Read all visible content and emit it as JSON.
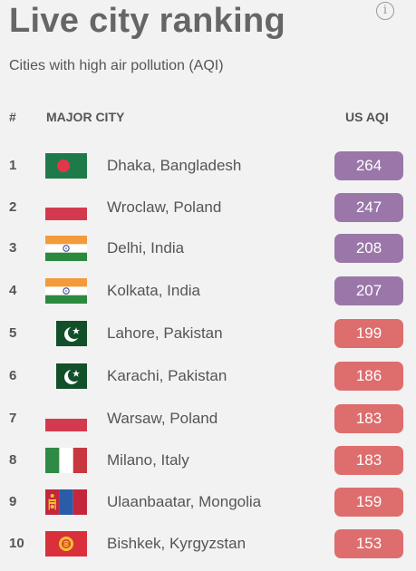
{
  "title": "Live city ranking",
  "subtitle": "Cities with high air pollution (AQI)",
  "table": {
    "headers": {
      "rank": "#",
      "city": "MAJOR CITY",
      "aqi": "US AQI"
    },
    "rows": [
      {
        "rank": "1",
        "city": "Dhaka, Bangladesh",
        "aqi": "264",
        "level": "purple",
        "flag": "bangladesh"
      },
      {
        "rank": "2",
        "city": "Wroclaw, Poland",
        "aqi": "247",
        "level": "purple",
        "flag": "poland"
      },
      {
        "rank": "3",
        "city": "Delhi, India",
        "aqi": "208",
        "level": "purple",
        "flag": "india"
      },
      {
        "rank": "4",
        "city": "Kolkata, India",
        "aqi": "207",
        "level": "purple",
        "flag": "india"
      },
      {
        "rank": "5",
        "city": "Lahore, Pakistan",
        "aqi": "199",
        "level": "red",
        "flag": "pakistan"
      },
      {
        "rank": "6",
        "city": "Karachi, Pakistan",
        "aqi": "186",
        "level": "red",
        "flag": "pakistan"
      },
      {
        "rank": "7",
        "city": "Warsaw, Poland",
        "aqi": "183",
        "level": "red",
        "flag": "poland"
      },
      {
        "rank": "8",
        "city": "Milano, Italy",
        "aqi": "183",
        "level": "red",
        "flag": "italy"
      },
      {
        "rank": "9",
        "city": "Ulaanbaatar, Mongolia",
        "aqi": "159",
        "level": "red",
        "flag": "mongolia"
      },
      {
        "rank": "10",
        "city": "Bishkek, Kyrgyzstan",
        "aqi": "153",
        "level": "red",
        "flag": "kyrgyzstan"
      }
    ]
  },
  "colors": {
    "purple_badge": "#9a77a8",
    "red_badge": "#de6d6d"
  },
  "icons": {
    "info": "info-icon"
  }
}
